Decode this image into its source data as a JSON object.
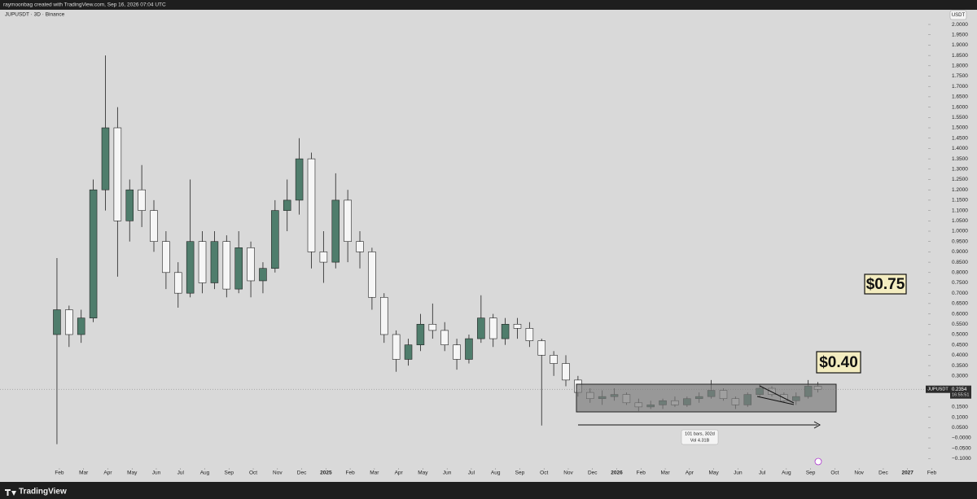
{
  "chart_data": {
    "type": "candlestick",
    "header": "raymoonbag created with TradingView.com, Sep 16, 2026 07:04 UTC",
    "title": "JUPUSDT · 3D · Binance",
    "currency": "USDT",
    "footer": "TradingView",
    "annotations": [
      "$0.75",
      "$0.40"
    ],
    "range_info": [
      "101 bars, 302d",
      "Vol 4.31B"
    ],
    "symbol": "JUPUSDT",
    "last_price": 0.2354,
    "countdown": "16:55:51",
    "up_color": "#4f7d6c",
    "down_color": "#f6f6f6",
    "x": [
      0.9,
      1.4,
      1.9,
      2.4,
      2.9,
      3.4,
      3.9,
      4.4,
      4.9,
      5.4,
      5.9,
      6.4,
      6.9,
      7.4,
      7.9,
      8.4,
      8.9,
      9.4,
      9.9,
      10.4,
      10.9,
      11.4,
      11.9,
      12.4,
      12.9,
      13.4,
      13.9,
      14.4,
      14.9,
      15.4,
      15.9,
      16.4,
      16.9,
      17.4,
      17.9,
      18.4,
      18.9,
      19.4,
      19.9,
      20.4,
      20.9,
      21.4,
      21.9,
      22.4,
      22.9,
      23.4,
      23.9,
      24.4,
      24.9,
      25.4,
      25.9,
      26.4,
      26.9,
      27.4,
      27.9,
      28.4,
      28.9,
      29.4,
      29.9,
      30.4,
      30.9,
      31.4,
      31.9,
      32.3
    ],
    "open": [
      0.5,
      0.62,
      0.5,
      0.58,
      1.2,
      1.5,
      1.05,
      1.2,
      1.1,
      0.95,
      0.8,
      0.7,
      0.95,
      0.75,
      0.95,
      0.72,
      0.92,
      0.76,
      0.82,
      1.1,
      1.15,
      1.35,
      0.9,
      0.85,
      1.15,
      0.95,
      0.9,
      0.68,
      0.5,
      0.38,
      0.45,
      0.55,
      0.52,
      0.45,
      0.38,
      0.48,
      0.58,
      0.48,
      0.55,
      0.53,
      0.47,
      0.4,
      0.36,
      0.28,
      0.22,
      0.19,
      0.2,
      0.21,
      0.17,
      0.15,
      0.16,
      0.18,
      0.16,
      0.19,
      0.2,
      0.23,
      0.19,
      0.16,
      0.21,
      0.24,
      0.21,
      0.18,
      0.2,
      0.25
    ],
    "high": [
      0.87,
      0.64,
      0.62,
      1.25,
      1.85,
      1.6,
      1.25,
      1.32,
      1.15,
      1.0,
      0.85,
      1.25,
      1.0,
      1.0,
      0.98,
      1.0,
      0.95,
      0.85,
      1.15,
      1.25,
      1.45,
      1.38,
      1.0,
      1.28,
      1.2,
      1.0,
      0.92,
      0.7,
      0.52,
      0.48,
      0.6,
      0.65,
      0.56,
      0.48,
      0.5,
      0.69,
      0.6,
      0.58,
      0.58,
      0.56,
      0.48,
      0.42,
      0.4,
      0.3,
      0.24,
      0.23,
      0.24,
      0.22,
      0.19,
      0.18,
      0.19,
      0.2,
      0.2,
      0.22,
      0.28,
      0.24,
      0.2,
      0.22,
      0.26,
      0.25,
      0.22,
      0.22,
      0.28,
      0.27
    ],
    "low": [
      -0.03,
      0.44,
      0.46,
      0.56,
      1.1,
      0.78,
      0.95,
      1.02,
      0.9,
      0.72,
      0.63,
      0.68,
      0.7,
      0.72,
      0.68,
      0.7,
      0.68,
      0.7,
      0.8,
      1.0,
      1.08,
      0.82,
      0.75,
      0.82,
      0.85,
      0.82,
      0.62,
      0.46,
      0.32,
      0.35,
      0.42,
      0.48,
      0.42,
      0.33,
      0.36,
      0.46,
      0.44,
      0.45,
      0.48,
      0.44,
      0.06,
      0.3,
      0.25,
      0.2,
      0.17,
      0.16,
      0.18,
      0.16,
      0.13,
      0.14,
      0.14,
      0.15,
      0.15,
      0.17,
      0.19,
      0.18,
      0.14,
      0.15,
      0.2,
      0.2,
      0.17,
      0.16,
      0.19,
      0.22
    ],
    "close": [
      0.62,
      0.5,
      0.58,
      1.2,
      1.5,
      1.05,
      1.2,
      1.1,
      0.95,
      0.8,
      0.7,
      0.95,
      0.75,
      0.95,
      0.72,
      0.92,
      0.76,
      0.82,
      1.1,
      1.15,
      1.35,
      0.9,
      0.85,
      1.15,
      0.95,
      0.9,
      0.68,
      0.5,
      0.38,
      0.45,
      0.55,
      0.52,
      0.45,
      0.38,
      0.48,
      0.58,
      0.48,
      0.55,
      0.53,
      0.47,
      0.4,
      0.36,
      0.28,
      0.22,
      0.19,
      0.2,
      0.21,
      0.17,
      0.15,
      0.16,
      0.18,
      0.16,
      0.19,
      0.2,
      0.23,
      0.19,
      0.16,
      0.21,
      0.24,
      0.21,
      0.18,
      0.2,
      0.25,
      0.235
    ],
    "xlim": [
      -1.45,
      36.85
    ],
    "ylim": [
      -0.134,
      2.071
    ],
    "xticks": [
      {
        "value": 1,
        "label": "Feb"
      },
      {
        "value": 2,
        "label": "Mar"
      },
      {
        "value": 3,
        "label": "Apr"
      },
      {
        "value": 4,
        "label": "May"
      },
      {
        "value": 5,
        "label": "Jun"
      },
      {
        "value": 6,
        "label": "Jul"
      },
      {
        "value": 7,
        "label": "Aug"
      },
      {
        "value": 8,
        "label": "Sep"
      },
      {
        "value": 9,
        "label": "Oct"
      },
      {
        "value": 10,
        "label": "Nov"
      },
      {
        "value": 11,
        "label": "Dec"
      },
      {
        "value": 12,
        "label": "2025"
      },
      {
        "value": 13,
        "label": "Feb"
      },
      {
        "value": 14,
        "label": "Mar"
      },
      {
        "value": 15,
        "label": "Apr"
      },
      {
        "value": 16,
        "label": "May"
      },
      {
        "value": 17,
        "label": "Jun"
      },
      {
        "value": 18,
        "label": "Jul"
      },
      {
        "value": 19,
        "label": "Aug"
      },
      {
        "value": 20,
        "label": "Sep"
      },
      {
        "value": 21,
        "label": "Oct"
      },
      {
        "value": 22,
        "label": "Nov"
      },
      {
        "value": 23,
        "label": "Dec"
      },
      {
        "value": 24,
        "label": "2026"
      },
      {
        "value": 25,
        "label": "Feb"
      },
      {
        "value": 26,
        "label": "Mar"
      },
      {
        "value": 27,
        "label": "Apr"
      },
      {
        "value": 28,
        "label": "May"
      },
      {
        "value": 29,
        "label": "Jun"
      },
      {
        "value": 30,
        "label": "Jul"
      },
      {
        "value": 31,
        "label": "Aug"
      },
      {
        "value": 32,
        "label": "Sep"
      },
      {
        "value": 33,
        "label": "Oct"
      },
      {
        "value": 34,
        "label": "Nov"
      },
      {
        "value": 35,
        "label": "Dec"
      },
      {
        "value": 36,
        "label": "2027"
      },
      {
        "value": 37,
        "label": "Feb"
      }
    ],
    "yticks": [
      {
        "value": 2,
        "label": "2.0000"
      },
      {
        "value": 1.95,
        "label": "1.9500"
      },
      {
        "value": 1.9,
        "label": "1.9000"
      },
      {
        "value": 1.85,
        "label": "1.8500"
      },
      {
        "value": 1.8,
        "label": "1.8000"
      },
      {
        "value": 1.75,
        "label": "1.7500"
      },
      {
        "value": 1.7,
        "label": "1.7000"
      },
      {
        "value": 1.65,
        "label": "1.6500"
      },
      {
        "value": 1.6,
        "label": "1.6000"
      },
      {
        "value": 1.55,
        "label": "1.5500"
      },
      {
        "value": 1.5,
        "label": "1.5000"
      },
      {
        "value": 1.45,
        "label": "1.4500"
      },
      {
        "value": 1.4,
        "label": "1.4000"
      },
      {
        "value": 1.35,
        "label": "1.3500"
      },
      {
        "value": 1.3,
        "label": "1.3000"
      },
      {
        "value": 1.25,
        "label": "1.2500"
      },
      {
        "value": 1.2,
        "label": "1.2000"
      },
      {
        "value": 1.15,
        "label": "1.1500"
      },
      {
        "value": 1.1,
        "label": "1.1000"
      },
      {
        "value": 1.05,
        "label": "1.0500"
      },
      {
        "value": 1,
        "label": "1.0000"
      },
      {
        "value": 0.95,
        "label": "0.9500"
      },
      {
        "value": 0.9,
        "label": "0.9000"
      },
      {
        "value": 0.85,
        "label": "0.8500"
      },
      {
        "value": 0.8,
        "label": "0.8000"
      },
      {
        "value": 0.75,
        "label": "0.7500"
      },
      {
        "value": 0.7,
        "label": "0.7000"
      },
      {
        "value": 0.65,
        "label": "0.6500"
      },
      {
        "value": 0.6,
        "label": "0.6000"
      },
      {
        "value": 0.55,
        "label": "0.5500"
      },
      {
        "value": 0.5,
        "label": "0.5000"
      },
      {
        "value": 0.45,
        "label": "0.4500"
      },
      {
        "value": 0.4,
        "label": "0.4000"
      },
      {
        "value": 0.35,
        "label": "0.3500"
      },
      {
        "value": 0.3,
        "label": "0.3000"
      },
      {
        "value": 0.15,
        "label": "0.1500"
      },
      {
        "value": 0.1,
        "label": "0.1000"
      },
      {
        "value": 0.05,
        "label": "0.0500"
      },
      {
        "value": 0,
        "label": "−0.0000"
      },
      {
        "value": -0.05,
        "label": "−0.0500"
      },
      {
        "value": -0.1,
        "label": "−0.1000"
      }
    ]
  }
}
